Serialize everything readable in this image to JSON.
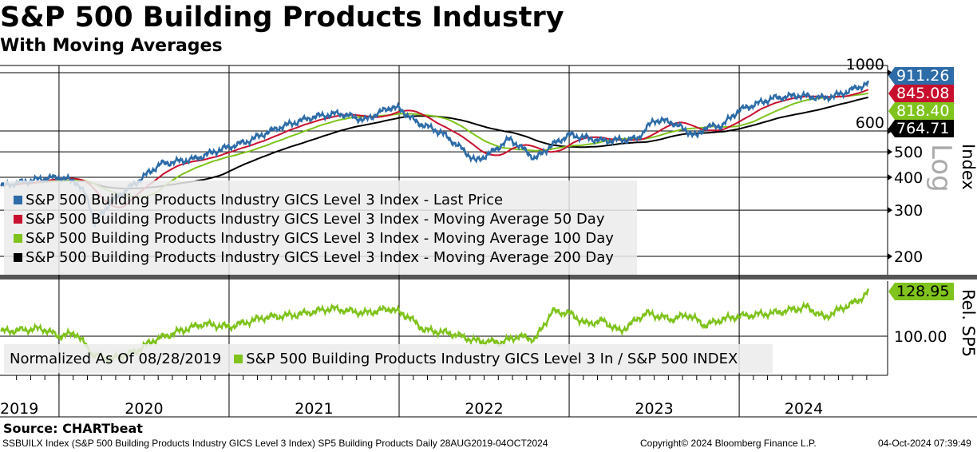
{
  "title": "S&P 500 Building Products Industry",
  "subtitle": "With Moving Averages",
  "source": "Source: CHARTbeat",
  "footer": {
    "left": "SSBUILX Index (S&P 500 Building Products Industry GICS Level 3 Index) SP5 Building Products  Daily 28AUG2019-04OCT2024",
    "center": "Copyright© 2024 Bloomberg Finance L.P.",
    "right": "04-Oct-2024 07:39:49"
  },
  "colors": {
    "price": "#2d6ca8",
    "ma50": "#c8102e",
    "ma100": "#7fc31c",
    "ma200": "#000000",
    "rel": "#7fc31c"
  },
  "chart_data": [
    {
      "type": "line",
      "panel": "upper",
      "ylabel": "Index",
      "scale_label": "Log",
      "yscale": "log",
      "ylim": [
        180,
        1000
      ],
      "yticks": [
        "1000",
        "600",
        "500",
        "400",
        "300",
        "200"
      ],
      "ytick_values": [
        1000,
        600,
        500,
        400,
        300,
        200
      ],
      "xlabel": "",
      "xticks": [
        "2019",
        "2020",
        "2021",
        "2022",
        "2023",
        "2024"
      ],
      "xrange": [
        2019.66,
        2024.76
      ],
      "legend": [
        "S&P 500 Building Products Industry GICS Level 3 Index - Last Price",
        "S&P 500 Building Products Industry GICS Level 3 Index - Moving Average 50 Day",
        "S&P 500 Building Products Industry GICS Level 3 Index - Moving Average 100 Day",
        "S&P 500 Building Products Industry GICS Level 3 Index - Moving Average 200 Day"
      ],
      "last_values": {
        "price": "911.26",
        "ma50": "845.08",
        "ma100": "818.40",
        "ma200": "764.71"
      },
      "ma_windows": [
        50,
        100,
        200
      ],
      "price": {
        "x": [
          2019.66,
          2019.8,
          2019.9,
          2020.0,
          2020.1,
          2020.17,
          2020.21,
          2020.3,
          2020.45,
          2020.6,
          2020.8,
          2020.95,
          2021.1,
          2021.3,
          2021.5,
          2021.65,
          2021.8,
          2021.95,
          2022.0,
          2022.1,
          2022.25,
          2022.45,
          2022.55,
          2022.65,
          2022.8,
          2022.9,
          2023.0,
          2023.2,
          2023.4,
          2023.5,
          2023.6,
          2023.75,
          2023.8,
          2023.9,
          2024.0,
          2024.2,
          2024.35,
          2024.5,
          2024.6,
          2024.7,
          2024.76
        ],
        "y": [
          370,
          385,
          395,
          400,
          385,
          330,
          265,
          320,
          380,
          450,
          470,
          510,
          545,
          620,
          680,
          700,
          660,
          740,
          730,
          650,
          590,
          460,
          500,
          560,
          470,
          530,
          580,
          550,
          560,
          660,
          650,
          570,
          620,
          630,
          720,
          800,
          820,
          800,
          830,
          880,
          911
        ]
      }
    },
    {
      "type": "line",
      "panel": "lower",
      "ylabel": "Rel. SP5",
      "ylim": [
        80,
        140
      ],
      "yticks": [
        "100.00"
      ],
      "ytick_values": [
        100
      ],
      "last_value": "128.95",
      "legend_note": "Normalized As Of 08/28/2019",
      "legend": [
        "S&P 500 Building Products Industry GICS Level 3 In / S&P 500 INDEX"
      ],
      "rel": {
        "x": [
          2019.66,
          2019.9,
          2020.0,
          2020.1,
          2020.2,
          2020.3,
          2020.45,
          2020.55,
          2020.7,
          2020.85,
          2021.0,
          2021.2,
          2021.4,
          2021.6,
          2021.8,
          2021.95,
          2022.05,
          2022.15,
          2022.3,
          2022.45,
          2022.6,
          2022.7,
          2022.8,
          2022.9,
          2023.0,
          2023.1,
          2023.2,
          2023.3,
          2023.45,
          2023.6,
          2023.7,
          2023.8,
          2023.9,
          2024.0,
          2024.2,
          2024.4,
          2024.5,
          2024.6,
          2024.7,
          2024.76
        ],
        "y": [
          103,
          105,
          100,
          102,
          88,
          85,
          90,
          97,
          103,
          108,
          106,
          112,
          114,
          118,
          115,
          118,
          113,
          104,
          102,
          97,
          96,
          100,
          98,
          116,
          115,
          108,
          110,
          103,
          115,
          111,
          114,
          107,
          111,
          113,
          115,
          119,
          112,
          118,
          123,
          129
        ]
      }
    }
  ]
}
